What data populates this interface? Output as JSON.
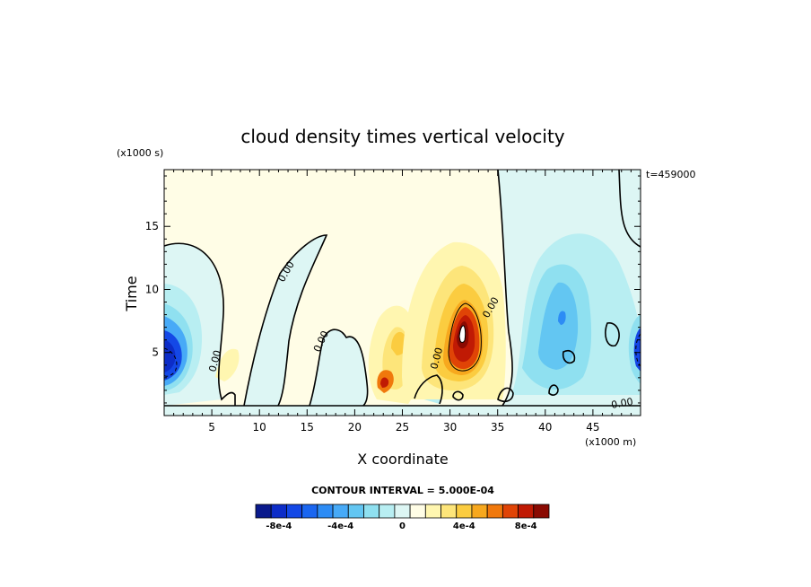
{
  "chart_data": {
    "type": "heatmap",
    "title": "cloud density times vertical velocity",
    "xlabel": "X coordinate",
    "ylabel": "Time",
    "x_units": "(x1000 m)",
    "y_units": "(x1000 s)",
    "time_stamp": "t=459000",
    "xlim": [
      0,
      50
    ],
    "ylim": [
      0,
      19.5
    ],
    "x_ticks": [
      "5",
      "10",
      "15",
      "20",
      "25",
      "30",
      "35",
      "40",
      "45"
    ],
    "y_ticks": [
      "5",
      "10",
      "15"
    ],
    "x_tick_values": [
      5,
      10,
      15,
      20,
      25,
      30,
      35,
      40,
      45
    ],
    "y_tick_values": [
      5,
      10,
      15
    ],
    "contour_interval_text": "CONTOUR INTERVAL = 5.000E-04",
    "contour_label": "0.00",
    "colorbar": {
      "colors": [
        "#0a1a8c",
        "#0d2dc8",
        "#1448e6",
        "#1a66f0",
        "#2d8cf5",
        "#47aaf7",
        "#63c6f2",
        "#8fe0f0",
        "#b8eef2",
        "#ddf6f4",
        "#fffde6",
        "#fff6b0",
        "#fde57a",
        "#fbcc40",
        "#f7a81e",
        "#f0780c",
        "#e04406",
        "#c01a04",
        "#8a0a02"
      ],
      "labels": [
        "-8e-4",
        "-4e-4",
        "0",
        "4e-4",
        "8e-4"
      ],
      "label_values": [
        -0.0008,
        -0.0004,
        0,
        0.0004,
        0.0008
      ],
      "range": [
        -0.00095,
        0.00095
      ]
    }
  }
}
